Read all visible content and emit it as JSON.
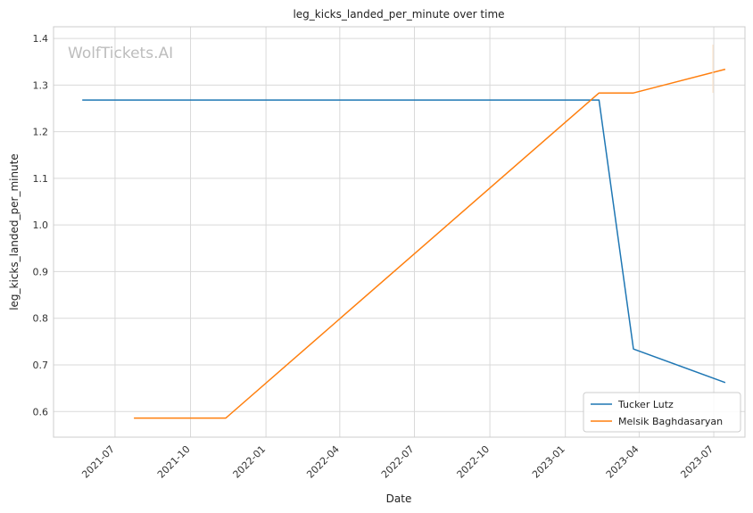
{
  "watermark": "WolfTickets.AI",
  "chart_data": {
    "type": "line",
    "title": "leg_kicks_landed_per_minute over time",
    "xlabel": "Date",
    "ylabel": "leg_kicks_landed_per_minute",
    "xlim": [
      "2021-04-17",
      "2023-08-08"
    ],
    "ylim": [
      0.545,
      1.425
    ],
    "x_ticks": [
      "2021-07",
      "2021-10",
      "2022-01",
      "2022-04",
      "2022-07",
      "2022-10",
      "2023-01",
      "2023-04",
      "2023-07"
    ],
    "y_ticks": [
      "0.6",
      "0.7",
      "0.8",
      "0.9",
      "1.0",
      "1.1",
      "1.2",
      "1.3",
      "1.4"
    ],
    "grid": true,
    "legend_position": "bottom-right",
    "series": [
      {
        "name": "Tucker Lutz",
        "color": "#1f77b4",
        "points": [
          {
            "x": "2021-05-22",
            "y": 1.268
          },
          {
            "x": "2023-02-11",
            "y": 1.268
          },
          {
            "x": "2023-03-25",
            "y": 0.734
          },
          {
            "x": "2023-07-15",
            "y": 0.662
          }
        ]
      },
      {
        "name": "Melsik Baghdasaryan",
        "color": "#ff7f0e",
        "points": [
          {
            "x": "2021-07-24",
            "y": 0.586
          },
          {
            "x": "2021-11-13",
            "y": 0.586
          },
          {
            "x": "2023-02-11",
            "y": 1.283
          },
          {
            "x": "2023-03-25",
            "y": 1.283
          },
          {
            "x": "2023-07-15",
            "y": 1.334
          }
        ]
      }
    ]
  }
}
